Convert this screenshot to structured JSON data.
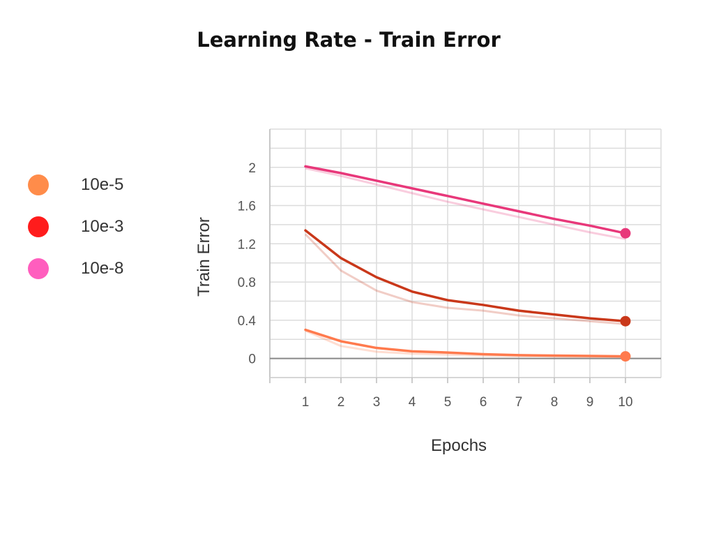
{
  "chart_data": {
    "type": "line",
    "title": "Learning Rate - Train Error",
    "xlabel": "Epochs",
    "ylabel": "Train Error",
    "x": [
      1,
      2,
      3,
      4,
      5,
      6,
      7,
      8,
      9,
      10
    ],
    "xlim": [
      0,
      11
    ],
    "ylim": [
      -0.2,
      2.4
    ],
    "yticks": [
      0,
      0.4,
      0.8,
      1.2,
      1.6,
      2
    ],
    "ytick_labels": [
      "0",
      "0.4",
      "0.8",
      "1.2",
      "1.6",
      "2"
    ],
    "xticks": [
      1,
      2,
      3,
      4,
      5,
      6,
      7,
      8,
      9,
      10
    ],
    "grid": true,
    "legend_position": "left",
    "series": [
      {
        "name": "10e-5",
        "color": "#ff7a4d",
        "legend_color": "#ff8c4a",
        "values": [
          0.3,
          0.18,
          0.11,
          0.075,
          0.062,
          0.045,
          0.035,
          0.03,
          0.026,
          0.022
        ],
        "raw_values": [
          0.29,
          0.13,
          0.07,
          0.05,
          0.04,
          0.03,
          0.025,
          0.02,
          0.018,
          0.015
        ]
      },
      {
        "name": "10e-3",
        "color": "#c9381a",
        "legend_color": "#ff1c1c",
        "values": [
          1.34,
          1.05,
          0.85,
          0.7,
          0.61,
          0.56,
          0.5,
          0.46,
          0.42,
          0.39
        ],
        "raw_values": [
          1.3,
          0.92,
          0.71,
          0.59,
          0.53,
          0.5,
          0.45,
          0.42,
          0.39,
          0.36
        ]
      },
      {
        "name": "10e-8",
        "color": "#e8387a",
        "legend_color": "#ff5ebe",
        "values": [
          2.01,
          1.94,
          1.86,
          1.78,
          1.7,
          1.62,
          1.54,
          1.46,
          1.39,
          1.31
        ],
        "raw_values": [
          1.99,
          1.91,
          1.82,
          1.73,
          1.64,
          1.56,
          1.48,
          1.4,
          1.32,
          1.25
        ]
      }
    ]
  }
}
